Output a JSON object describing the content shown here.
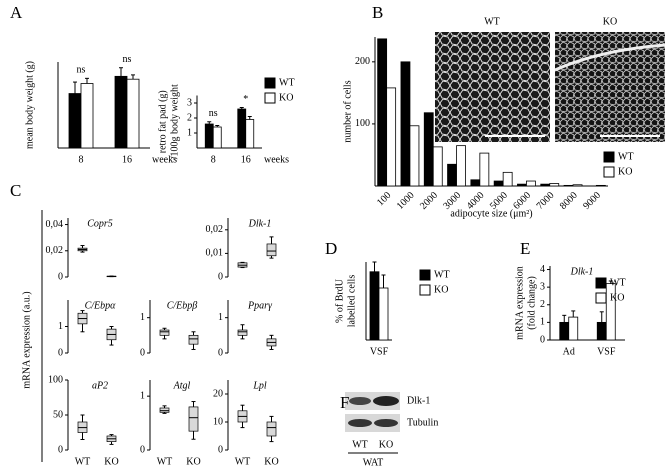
{
  "chart_data": [
    {
      "panel": "A",
      "type": "bar",
      "ylabel": [
        "mean body weight (g)"
      ],
      "categories": [
        "8",
        "16"
      ],
      "x_unit": "weeks",
      "ylim": [
        0,
        30
      ],
      "annotations": [
        "ns",
        "ns"
      ],
      "series": [
        {
          "color": "#000000",
          "values": [
            19,
            25
          ],
          "errors": [
            4,
            3
          ]
        },
        {
          "color": "#ffffff",
          "values": [
            22.5,
            24
          ],
          "errors": [
            1.8,
            1.5
          ]
        }
      ]
    },
    {
      "type": "bar",
      "ylabel": [
        "retro fat pad (g)",
        "/100g body weight"
      ],
      "categories": [
        "8",
        "16"
      ],
      "x_unit": "weeks",
      "ylim": [
        0,
        3.5
      ],
      "yticks": [
        1,
        2,
        3
      ],
      "annotations": [
        "ns",
        "*"
      ],
      "legend": true,
      "series": [
        {
          "name": "WT",
          "color": "#000000",
          "values": [
            1.6,
            2.6
          ],
          "errors": [
            0.15,
            0.1
          ]
        },
        {
          "name": "KO",
          "color": "#ffffff",
          "values": [
            1.4,
            1.9
          ],
          "errors": [
            0.1,
            0.2
          ]
        }
      ]
    },
    {
      "panel": "B",
      "type": "bar",
      "ylabel": [
        "number of cells"
      ],
      "xlabel": "adipocyte size (μm²)",
      "categories": [
        "100",
        "1000",
        "2000",
        "3000",
        "4000",
        "5000",
        "6000",
        "7000",
        "8000",
        "9000"
      ],
      "ylim": [
        0,
        240
      ],
      "yticks": [
        100,
        200
      ],
      "legend": true,
      "image_labels": [
        "WT",
        "KO"
      ],
      "series": [
        {
          "name": "WT",
          "color": "#000000",
          "values": [
            237,
            200,
            118,
            35,
            10,
            8,
            3,
            3,
            1,
            0
          ]
        },
        {
          "name": "KO",
          "color": "#ffffff",
          "values": [
            158,
            97,
            63,
            65,
            53,
            22,
            8,
            4,
            2,
            1
          ]
        }
      ]
    },
    {
      "panel": "C",
      "type": "box",
      "title": "Copr5",
      "ylabel": [
        "mRNA expression (a.u.)"
      ],
      "ylim": [
        0,
        0.045
      ],
      "yticks": [
        {
          "value": 0.04,
          "label": "0,04"
        },
        {
          "value": 0.02,
          "label": "0,02"
        },
        0
      ],
      "boxes": [
        [
          0.019,
          0.02,
          0.021,
          0.022,
          0.024
        ],
        [
          0.0003,
          0.0004,
          0.0005,
          0.0006,
          0.0007
        ]
      ]
    },
    {
      "type": "box",
      "title": "Dlk-1",
      "ylim": [
        0,
        0.025
      ],
      "yticks": [
        {
          "value": 0.02,
          "label": "0,02"
        },
        {
          "value": 0.01,
          "label": "0,01"
        },
        0
      ],
      "boxes": [
        [
          0.004,
          0.0042,
          0.005,
          0.006,
          0.0062
        ],
        [
          0.008,
          0.009,
          0.011,
          0.014,
          0.017
        ]
      ]
    },
    {
      "type": "box",
      "title": "C/Ebpα",
      "ylim": [
        0,
        2
      ],
      "yticks": [
        1,
        0
      ],
      "boxes": [
        [
          0.8,
          1.1,
          1.3,
          1.5,
          1.6
        ],
        [
          0.3,
          0.5,
          0.7,
          0.9,
          1.0
        ]
      ]
    },
    {
      "type": "box",
      "title": "C/Ebpβ",
      "ylim": [
        0,
        1.5
      ],
      "yticks": [
        1,
        0
      ],
      "boxes": [
        [
          0.4,
          0.5,
          0.6,
          0.65,
          0.7
        ],
        [
          0.1,
          0.25,
          0.4,
          0.5,
          0.6
        ]
      ]
    },
    {
      "type": "box",
      "title": "Pparγ",
      "ylim": [
        0,
        1.5
      ],
      "yticks": [
        1,
        0
      ],
      "boxes": [
        [
          0.4,
          0.5,
          0.6,
          0.65,
          0.8
        ],
        [
          0.1,
          0.2,
          0.3,
          0.4,
          0.5
        ]
      ]
    },
    {
      "type": "box",
      "title": "aP2",
      "categories": [
        "WT",
        "KO"
      ],
      "ylim": [
        0,
        100
      ],
      "yticks": [
        100,
        50,
        0
      ],
      "boxes": [
        [
          15,
          25,
          32,
          40,
          50
        ],
        [
          8,
          12,
          16,
          20,
          22
        ]
      ]
    },
    {
      "type": "box",
      "title": "Atgl",
      "categories": [
        "WT",
        "KO"
      ],
      "ylim": [
        0,
        1.3
      ],
      "yticks": [
        1,
        0
      ],
      "boxes": [
        [
          0.68,
          0.7,
          0.73,
          0.78,
          0.82
        ],
        [
          0.2,
          0.35,
          0.6,
          0.8,
          0.9
        ]
      ]
    },
    {
      "type": "box",
      "title": "Lpl",
      "categories": [
        "WT",
        "KO"
      ],
      "ylim": [
        0,
        25
      ],
      "yticks": [
        20,
        10,
        0
      ],
      "boxes": [
        [
          8,
          10,
          12,
          14,
          16
        ],
        [
          3,
          5,
          8,
          10,
          12
        ]
      ]
    },
    {
      "panel": "D",
      "type": "bar",
      "ylabel": [
        "% of  BrdU",
        "labelled cells"
      ],
      "categories": [
        "VSF"
      ],
      "ylim": [
        0,
        12
      ],
      "legend": true,
      "series": [
        {
          "name": "WT",
          "color": "#000000",
          "values": [
            10.5
          ],
          "errors": [
            1.5
          ]
        },
        {
          "name": "KO",
          "color": "#ffffff",
          "values": [
            8
          ],
          "errors": [
            2
          ]
        }
      ]
    },
    {
      "panel": "E",
      "type": "bar",
      "title": "Dlk-1",
      "ylabel": [
        "mRNA expression",
        "(fold change)"
      ],
      "categories": [
        "Ad",
        "VSF"
      ],
      "ylim": [
        0,
        4.2
      ],
      "yticks": [
        0,
        1,
        2,
        3,
        4
      ],
      "legend": true,
      "series": [
        {
          "name": "WT",
          "color": "#000000",
          "values": [
            1,
            1
          ],
          "errors": [
            0.4,
            0.6
          ]
        },
        {
          "name": "KO",
          "color": "#ffffff",
          "values": [
            1.3,
            3.2
          ],
          "errors": [
            0.35,
            0.15
          ]
        }
      ]
    }
  ],
  "blot": {
    "panel": "F",
    "bands": [
      "Dlk-1",
      "Tubulin"
    ],
    "lanes": [
      "WT",
      "KO"
    ],
    "tissue": "WAT"
  }
}
